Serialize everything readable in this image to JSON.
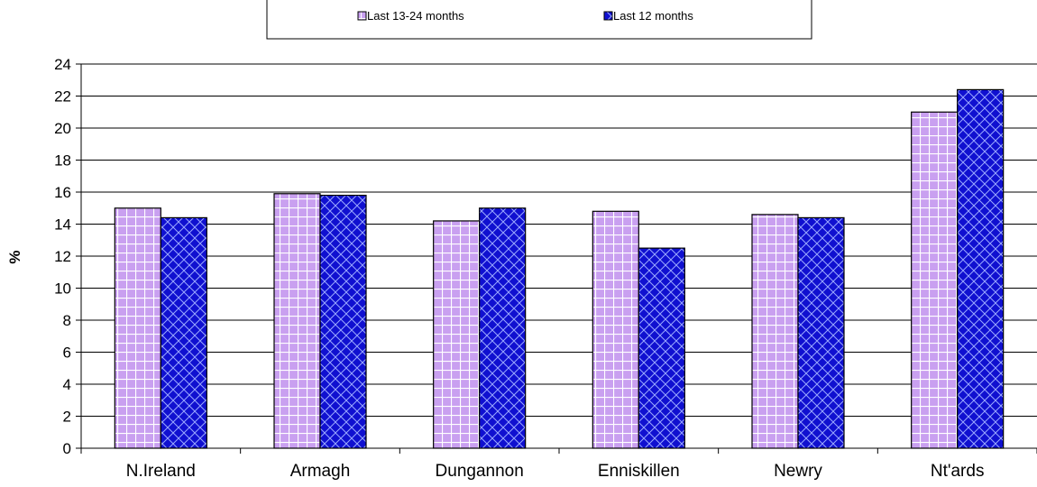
{
  "chart_data": {
    "type": "bar",
    "categories": [
      "N.Ireland",
      "Armagh",
      "Dungannon",
      "Enniskillen",
      "Newry",
      "Nt'ards"
    ],
    "series": [
      {
        "name": "Last 13-24 months",
        "values": [
          15.0,
          15.9,
          14.2,
          14.8,
          14.6,
          21.0
        ],
        "color": "#c9a0f0"
      },
      {
        "name": "Last 12 months",
        "values": [
          14.4,
          15.8,
          15.0,
          12.5,
          14.4,
          22.4
        ],
        "color": "#1010d0"
      }
    ],
    "xlabel": "",
    "ylabel": "%",
    "ylim": [
      0,
      24
    ],
    "yticks": [
      0,
      2,
      4,
      6,
      8,
      10,
      12,
      14,
      16,
      18,
      20,
      22,
      24
    ],
    "grid": true,
    "legend_position": "top"
  }
}
